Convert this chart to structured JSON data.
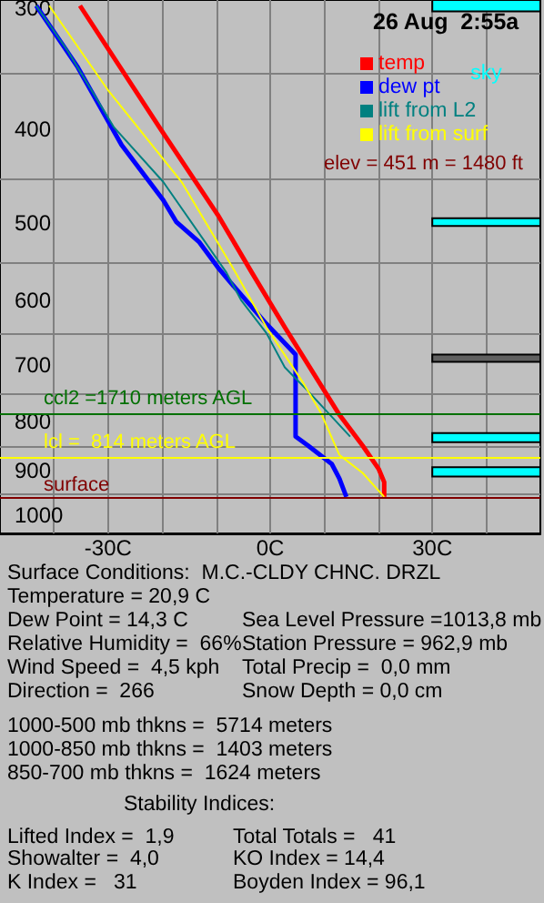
{
  "chart_data": {
    "type": "line",
    "xlim": [
      -50,
      50
    ],
    "xticks": [
      {
        "value": -40,
        "label": null
      },
      {
        "value": -30,
        "label": "-30C"
      },
      {
        "value": -20,
        "label": null
      },
      {
        "value": -10,
        "label": null
      },
      {
        "value": 0,
        "label": "0C"
      },
      {
        "value": 10,
        "label": null
      },
      {
        "value": 20,
        "label": null
      },
      {
        "value": 30,
        "label": "30C"
      },
      {
        "value": 40,
        "label": null
      }
    ],
    "ylim": [
      1045,
      294
    ],
    "log": true,
    "yticks": [
      300,
      {
        "value": 350,
        "label": null
      },
      400,
      {
        "value": 450,
        "label": null
      },
      500,
      {
        "value": 550,
        "label": null
      },
      600,
      {
        "value": 650,
        "label": null
      },
      700,
      {
        "value": 750,
        "label": null
      },
      800,
      {
        "value": 850,
        "label": null
      },
      900,
      {
        "value": 950,
        "label": null
      },
      1000
    ],
    "grid": true,
    "legend": "top right",
    "marker": "none",
    "series": [
      {
        "name": "temp",
        "color": "#ff0000",
        "x": [
          -35.2,
          -20.5,
          -9.7,
          -3.4,
          2.7,
          12.8,
          17.1,
          20.1,
          21.1,
          21.1
        ],
        "values": [
          298,
          398,
          490,
          562,
          640,
          788,
          848,
          897,
          925,
          958
        ]
      },
      {
        "name": "dew pt",
        "color": "#0000ff",
        "x": [
          -43.3,
          -35.6,
          -27.5,
          -19.8,
          -17.4,
          -13.1,
          -9.7,
          -7.4,
          -0.7,
          4.7,
          4.7,
          7.0,
          11.4,
          12.8,
          14.1
        ],
        "values": [
          298,
          345,
          415,
          473,
          498,
          523,
          555,
          575,
          635,
          683,
          830,
          848,
          886,
          917,
          958
        ]
      },
      {
        "name": "lift from L2",
        "color": "#008080",
        "x": [
          -43.3,
          -37.6,
          -28.9,
          -19.8,
          -8.1,
          -5.4,
          -0.7,
          2.7,
          7.0,
          14.8
        ],
        "values": [
          298,
          331,
          398,
          453,
          562,
          600,
          649,
          704,
          745,
          830
        ]
      },
      {
        "name": "lift from surf",
        "color": "#ffff00",
        "x": [
          -40.9,
          -29.9,
          -16.4,
          -6.4,
          -0.7,
          6.0,
          9.4,
          12.8,
          17.1,
          21.1
        ],
        "values": [
          298,
          365,
          453,
          562,
          640,
          729,
          785,
          867,
          905,
          958
        ]
      }
    ],
    "bands": [
      {
        "axis": "y",
        "from": 294,
        "to": 302,
        "label": "sky",
        "color": "#00ffff"
      },
      {
        "axis": "y",
        "from": 494,
        "to": 503,
        "label": null,
        "color": "#00ffff"
      },
      {
        "axis": "y",
        "from": 683,
        "to": 695,
        "label": null,
        "color": "#606060"
      },
      {
        "axis": "y",
        "from": 823,
        "to": 841,
        "label": null,
        "color": "#00ffff"
      },
      {
        "axis": "y",
        "from": 893,
        "to": 913,
        "label": null,
        "color": "#00ffff"
      }
    ],
    "ref_lines": [
      {
        "axis": "y",
        "value": 785,
        "label": null,
        "color": "#007000"
      },
      {
        "axis": "y",
        "value": 871,
        "label": null,
        "color": "#ffff00"
      },
      {
        "axis": "y",
        "value": 958,
        "label": "surface",
        "color": "#800000"
      }
    ],
    "annotations": [
      "26 Aug  2:55a",
      "elev = 451 m = 1480 ft",
      "Surface Conditions:  M.C.-CLDY CHNC. DRZL",
      "Temperature = 20,9 C",
      "Dew Point = 14,3 C",
      "Relative Humidity =  66%",
      "Wind Speed =  4,5 kph",
      "Direction =  266",
      "Sea Level Pressure =1013,8 mb",
      "Station Pressure = 962,9 mb",
      "Total Precip =  0,0 mm",
      "Snow Depth = 0,0 cm",
      "1000-500 mb thkns =  5714 meters",
      "1000-850 mb thkns =  1403 meters",
      "850-700 mb thkns =  1624 meters",
      "Stability Indices:",
      "Lifted Index =  1,9",
      "Showalter =  4,0",
      "K Index =   31",
      "Total Totals =   41",
      "KO Index = 14,4",
      "Boyden Index = 96,1",
      {
        "text": "ccl2 =1710 meters AGL",
        "y": 785
      },
      {
        "text": "lcl =  814 meters AGL",
        "y": 871
      }
    ]
  }
}
